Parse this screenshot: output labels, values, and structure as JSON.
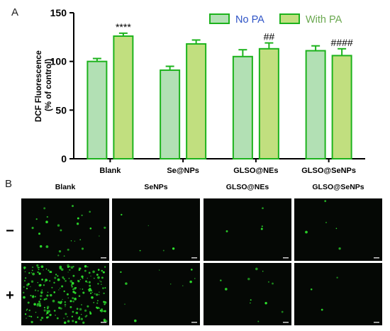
{
  "panel_a_label": "A",
  "panel_b_label": "B",
  "chart_data": {
    "type": "bar",
    "title": "",
    "xlabel": "",
    "ylabel": "DCF Fluorescence\n(% of control)",
    "ylim": [
      0,
      150
    ],
    "yticks": [
      "0",
      "50",
      "100",
      "150"
    ],
    "categories": [
      "Blank",
      "Se@NPs",
      "GLSO@NEs",
      "GLSO@SeNPs"
    ],
    "legend_position": "top-right",
    "grid": false,
    "series": [
      {
        "name": "No PA",
        "values": [
          100,
          91,
          105,
          111
        ],
        "errors": [
          3,
          4,
          7,
          5
        ],
        "fill": "#b2e0b4",
        "stroke": "#1db31d",
        "legend_text_color": "#2f54c6"
      },
      {
        "name": "With PA",
        "values": [
          126,
          118,
          113,
          106
        ],
        "errors": [
          3,
          4,
          6,
          7
        ],
        "fill": "#c1df7f",
        "stroke": "#1db31d",
        "legend_text_color": "#6aa84f"
      }
    ],
    "annotations": [
      {
        "category_index": 0,
        "series_index": 1,
        "text": "****"
      },
      {
        "category_index": 2,
        "series_index": 1,
        "text": "##"
      },
      {
        "category_index": 3,
        "series_index": 1,
        "text": "####"
      }
    ]
  },
  "micrographs": {
    "columns": [
      "Blank",
      "SeNPs",
      "GLSO@NEs",
      "GLSO@SeNPs"
    ],
    "rows": [
      "−",
      "+"
    ],
    "dot_color": "#2ee82e",
    "background": "#050805",
    "dot_counts": [
      [
        26,
        5,
        4,
        5
      ],
      [
        240,
        10,
        12,
        3
      ]
    ]
  }
}
